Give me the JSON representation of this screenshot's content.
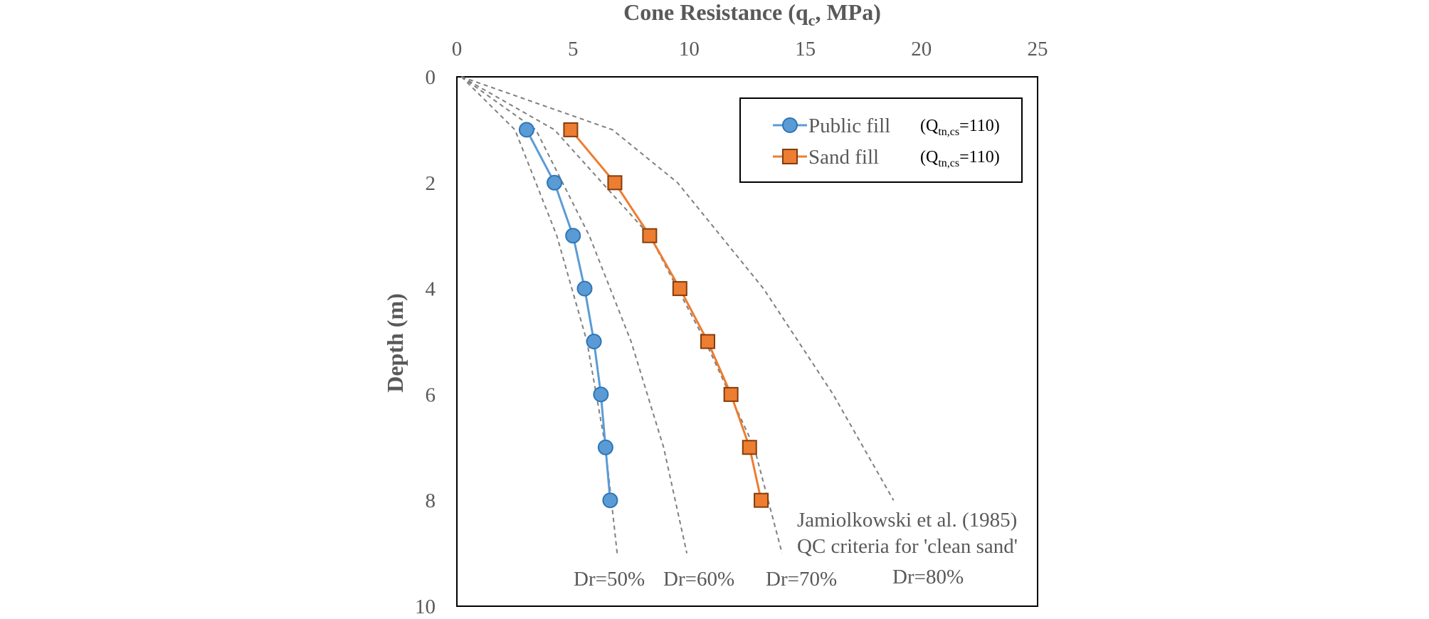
{
  "chart_data": {
    "type": "scatter",
    "x_axis": {
      "label_main": "Cone Resistance (q",
      "label_sub": "c",
      "label_tail": ", MPa)",
      "position": "top",
      "range": [
        0,
        25
      ],
      "ticks": [
        "0",
        "5",
        "10",
        "15",
        "20",
        "25"
      ]
    },
    "y_axis": {
      "label": "Depth (m)",
      "range": [
        0,
        10
      ],
      "reversed": true,
      "ticks": [
        "0",
        "2",
        "4",
        "6",
        "8",
        "10"
      ]
    },
    "grid": false,
    "legend": {
      "placement": "top-right",
      "q_main": "(Q",
      "q_sub": "tn,cs",
      "q_tail": "=110)"
    },
    "series": [
      {
        "name": "Public fill",
        "color": "#5B9BD5",
        "edge_color": "#2E75B6",
        "marker": "circle",
        "x": [
          3.0,
          4.2,
          5.0,
          5.5,
          5.9,
          6.2,
          6.4,
          6.6
        ],
        "y": [
          1,
          2,
          3,
          4,
          5,
          6,
          7,
          8
        ]
      },
      {
        "name": "Sand fill",
        "color": "#ED7D31",
        "edge_color": "#843C0C",
        "marker": "square",
        "x": [
          4.9,
          6.8,
          8.3,
          9.6,
          10.8,
          11.8,
          12.6,
          13.1
        ],
        "y": [
          1,
          2,
          3,
          4,
          5,
          6,
          7,
          8
        ]
      }
    ],
    "reference_curves": {
      "color": "#7F7F7F",
      "style": "dashed",
      "curves": [
        {
          "label": "Dr=50%",
          "x": [
            0.2,
            2.5,
            4.3,
            5.6,
            6.4,
            6.9
          ],
          "y": [
            0,
            1,
            3,
            5,
            7,
            9
          ]
        },
        {
          "label": "Dr=60%",
          "x": [
            0.2,
            3.4,
            5.7,
            7.5,
            8.9,
            9.9
          ],
          "y": [
            0,
            1,
            3,
            5,
            7,
            9
          ]
        },
        {
          "label": "Dr=70%",
          "x": [
            0.2,
            4.2,
            8.3,
            10.7,
            12.8,
            14.0
          ],
          "y": [
            0,
            1,
            3,
            5,
            7,
            9
          ]
        },
        {
          "label": "Dr=80%",
          "x": [
            0.2,
            6.7,
            9.5,
            13.2,
            16.2,
            18.8
          ],
          "y": [
            0,
            1,
            2,
            4,
            6,
            8
          ]
        }
      ]
    },
    "annotation_lines": [
      "Jamiolkowski et al. (1985)",
      "QC criteria for 'clean sand'"
    ]
  }
}
